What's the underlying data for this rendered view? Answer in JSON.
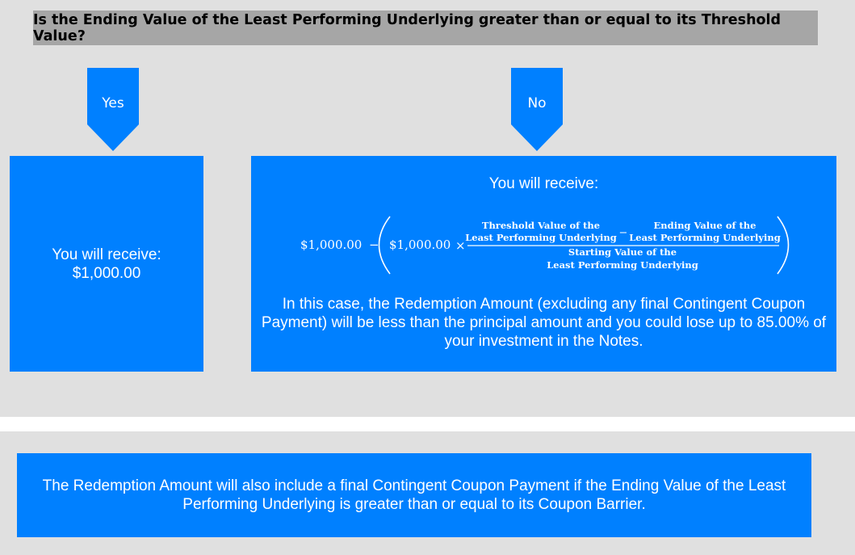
{
  "question": "Is the Ending Value of the Least Performing Underlying greater than or equal to its Threshold Value?",
  "yes_branch": {
    "label": "Yes",
    "line1": "You will receive:",
    "line2": "$1,000.00"
  },
  "no_branch": {
    "label": "No",
    "title": "You will receive:",
    "formula": {
      "principal": "$1,000.00",
      "minus": "−",
      "times": "×",
      "threshold_line1": "Threshold Value of the",
      "threshold_line2": "Least Performing Underlying",
      "ending_line1": "Ending Value of the",
      "ending_line2": "Least Performing Underlying",
      "starting_line1": "Starting Value of the",
      "starting_line2": "Least Performing Underlying"
    },
    "explanation": "In this case, the Redemption Amount (excluding any final Contingent Coupon Payment) will be less than the principal amount and you could lose up to 85.00% of your investment in the Notes."
  },
  "note": "The Redemption Amount will also include a final Contingent Coupon Payment if the Ending Value of the Least Performing Underlying is greater than or equal to its Coupon Barrier.",
  "colors": {
    "box_blue": "#0080ff",
    "question_gray": "#a6a6a6",
    "panel_gray": "#e0e0e0"
  }
}
